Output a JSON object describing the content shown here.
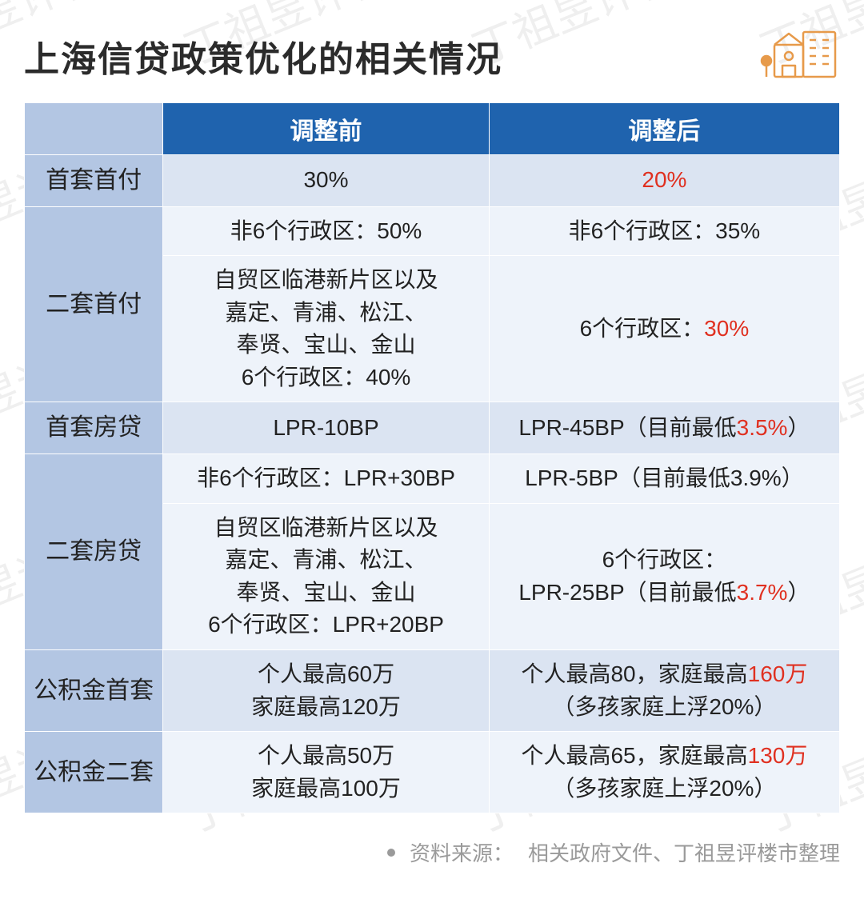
{
  "title": "上海信贷政策优化的相关情况",
  "icon": {
    "name": "buildings-icon",
    "stroke": "#e79a4a",
    "tree": "#e79a4a"
  },
  "table": {
    "header_bg": "#1f63ae",
    "header_fg": "#ffffff",
    "rowlabel_bg": "#b3c6e3",
    "band_a_bg": "#dbe4f2",
    "band_b_bg": "#eef3fa",
    "highlight_color": "#e03020",
    "columns": [
      "",
      "调整前",
      "调整后"
    ],
    "rows": [
      {
        "label": "首套首付",
        "before": [
          {
            "t": "30%"
          }
        ],
        "after": [
          {
            "t": "20%",
            "hl": true
          }
        ],
        "band": "a",
        "sub": 1
      },
      {
        "label": "二套首付",
        "band": "b",
        "sub": 2,
        "before_rows": [
          [
            {
              "t": "非6个行政区：50%"
            }
          ],
          [
            {
              "t": "自贸区临港新片区以及"
            },
            {
              "br": true
            },
            {
              "t": "嘉定、青浦、松江、"
            },
            {
              "br": true
            },
            {
              "t": "奉贤、宝山、金山"
            },
            {
              "br": true
            },
            {
              "t": "6个行政区：40%"
            }
          ]
        ],
        "after_rows": [
          [
            {
              "t": "非6个行政区：35%"
            }
          ],
          [
            {
              "t": "6个行政区："
            },
            {
              "t": "30%",
              "hl": true
            }
          ]
        ]
      },
      {
        "label": "首套房贷",
        "band": "a",
        "sub": 1,
        "before": [
          {
            "t": "LPR-10BP"
          }
        ],
        "after": [
          {
            "t": "LPR-45BP（目前最低"
          },
          {
            "t": "3.5%",
            "hl": true
          },
          {
            "t": "）"
          }
        ]
      },
      {
        "label": "二套房贷",
        "band": "b",
        "sub": 2,
        "before_rows": [
          [
            {
              "t": "非6个行政区：LPR+30BP"
            }
          ],
          [
            {
              "t": "自贸区临港新片区以及"
            },
            {
              "br": true
            },
            {
              "t": "嘉定、青浦、松江、"
            },
            {
              "br": true
            },
            {
              "t": "奉贤、宝山、金山"
            },
            {
              "br": true
            },
            {
              "t": "6个行政区：LPR+20BP"
            }
          ]
        ],
        "after_rows": [
          [
            {
              "t": "LPR-5BP（目前最低3.9%）"
            }
          ],
          [
            {
              "t": "6个行政区："
            },
            {
              "br": true
            },
            {
              "t": "LPR-25BP（目前最低"
            },
            {
              "t": "3.7%",
              "hl": true
            },
            {
              "t": "）"
            }
          ]
        ]
      },
      {
        "label": "公积金首套",
        "band": "a",
        "sub": 1,
        "before": [
          {
            "t": "个人最高60万"
          },
          {
            "br": true
          },
          {
            "t": "家庭最高120万"
          }
        ],
        "after": [
          {
            "t": "个人最高80，家庭最高"
          },
          {
            "t": "160万",
            "hl": true
          },
          {
            "br": true
          },
          {
            "t": "（多孩家庭上浮20%）"
          }
        ]
      },
      {
        "label": "公积金二套",
        "band": "b",
        "sub": 1,
        "before": [
          {
            "t": "个人最高50万"
          },
          {
            "br": true
          },
          {
            "t": "家庭最高100万"
          }
        ],
        "after": [
          {
            "t": "个人最高65，家庭最高"
          },
          {
            "t": "130万",
            "hl": true
          },
          {
            "br": true
          },
          {
            "t": "（多孩家庭上浮20%）"
          }
        ]
      }
    ]
  },
  "source": {
    "label": "资料来源：",
    "text": "相关政府文件、丁祖昱评楼市整理"
  },
  "watermark": {
    "text": "丁祖昱评楼市"
  }
}
